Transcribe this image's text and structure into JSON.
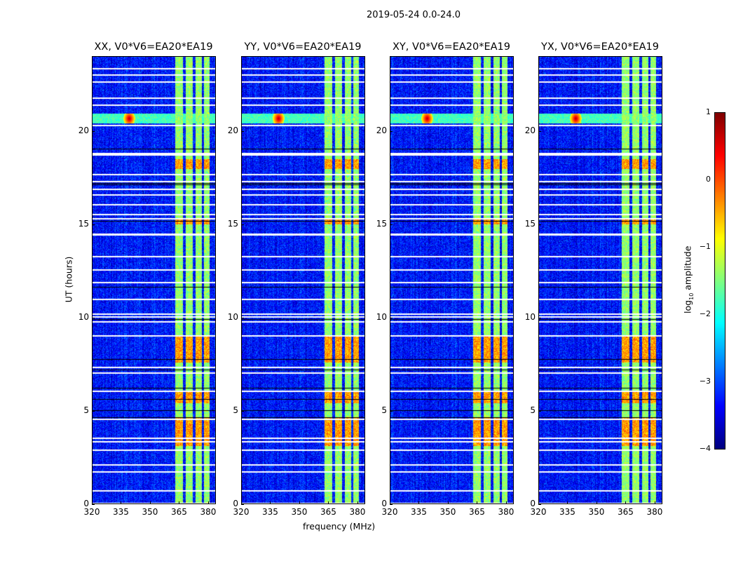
{
  "chart_data": {
    "type": "heatmap",
    "title": "2019-05-24 0.0-24.0",
    "xlabel": "frequency (MHz)",
    "ylabel": "UT (hours)",
    "xlim": [
      320,
      384
    ],
    "ylim": [
      0,
      24
    ],
    "xticks": [
      "320",
      "335",
      "350",
      "365",
      "380"
    ],
    "xtick_values": [
      320,
      335,
      350,
      365,
      380
    ],
    "yticks": [
      "0",
      "5",
      "10",
      "15",
      "20"
    ],
    "ytick_values": [
      0,
      5,
      10,
      15,
      20
    ],
    "panels": [
      {
        "title": "XX, V0*V6=EA20*EA19",
        "seed": 11
      },
      {
        "title": "YY, V0*V6=EA20*EA19",
        "seed": 23
      },
      {
        "title": "XY, V0*V6=EA20*EA19",
        "seed": 37
      },
      {
        "title": "YX, V0*V6=EA20*EA19",
        "seed": 51
      }
    ],
    "colorbar": {
      "label_prefix": "log",
      "label_sub": "10",
      "label_suffix": " amplitude",
      "range": [
        -4,
        1
      ],
      "ticks": [
        "1",
        "0",
        "−1",
        "−2",
        "−3",
        "−4"
      ],
      "tick_values": [
        1,
        0,
        -1,
        -2,
        -3,
        -4
      ],
      "colormap": "jet"
    },
    "background_log_amplitude": -3.3,
    "rfi_band_mhz": [
      363,
      381
    ],
    "rfi_band_level": -1.4,
    "rfi_gaps_mhz": [
      [
        367,
        368.5
      ],
      [
        372,
        373.5
      ],
      [
        377,
        378
      ]
    ],
    "strong_rfi_hours": [
      [
        7.6,
        9.0
      ],
      [
        5.4,
        6.0
      ],
      [
        3.1,
        4.6
      ],
      [
        15.0,
        15.3
      ],
      [
        18.0,
        18.5
      ]
    ],
    "strong_rfi_level": -0.4,
    "event": {
      "hour": 20.7,
      "level": -1.8,
      "peak_mhz": 339,
      "peak_level": 0.8
    },
    "flagged_hours_white": [
      23.4,
      23.05,
      22.7,
      21.8,
      21.45,
      20.35,
      18.85,
      18.75,
      17.7,
      17.35,
      16.9,
      16.6,
      16.1,
      15.55,
      15.35,
      14.5,
      14.45,
      13.3,
      12.6,
      11.9,
      11.0,
      10.2,
      10.05,
      9.8,
      9.05,
      7.35,
      7.05,
      6.05,
      4.55,
      3.55,
      3.35,
      2.9,
      2.1,
      1.75,
      0.7,
      0.05
    ],
    "flagged_hours_black": [
      19.05,
      17.2,
      17.15,
      15.2,
      11.65,
      9.9,
      7.75,
      7.2,
      6.2,
      5.6,
      5.0,
      4.65
    ]
  }
}
